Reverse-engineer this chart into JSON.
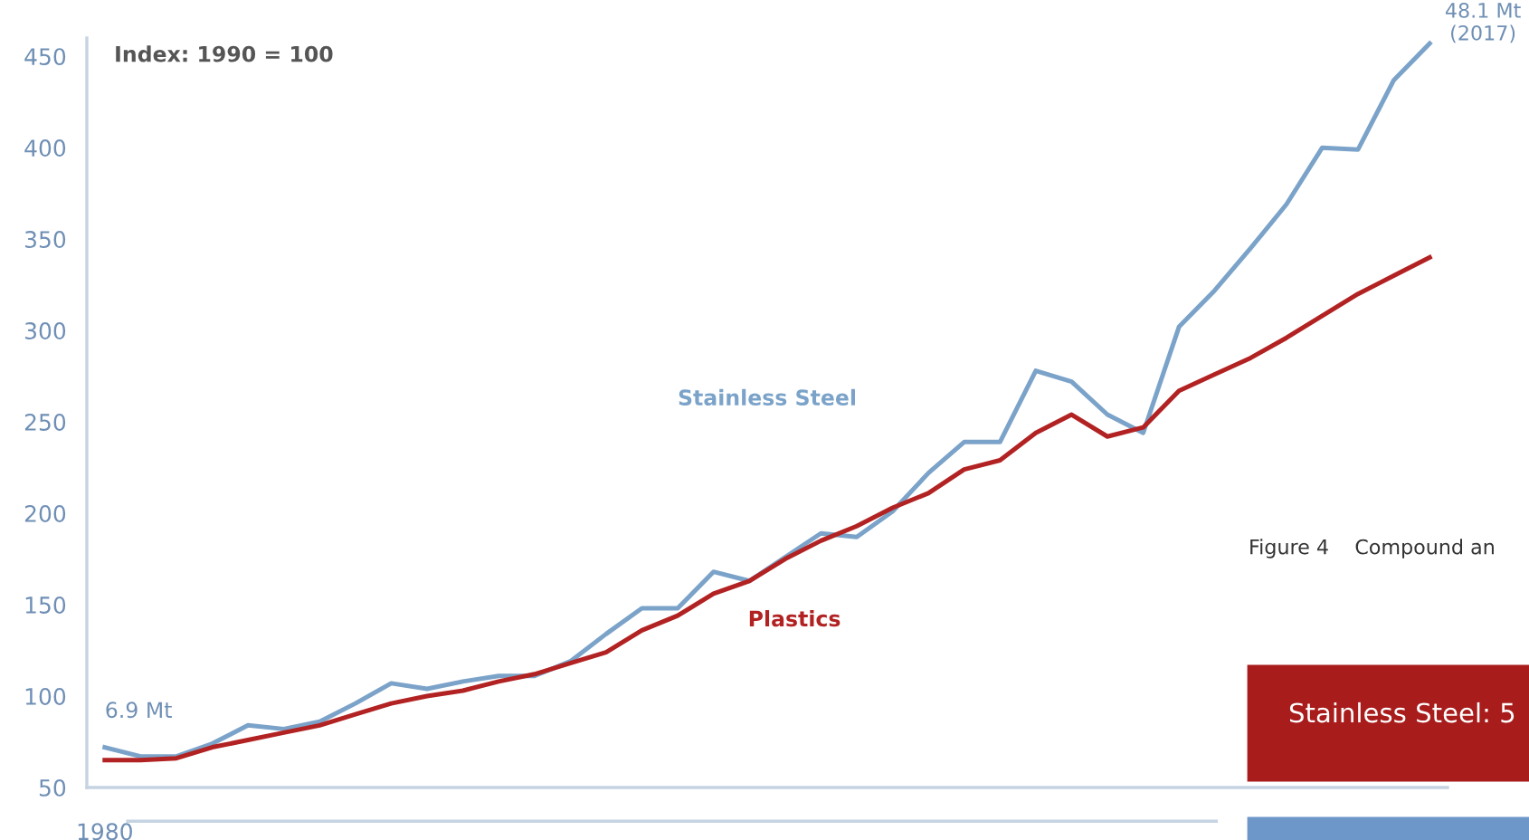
{
  "chart_data": {
    "type": "line",
    "categories": [
      "1980",
      null,
      null,
      null,
      null,
      null,
      null,
      null,
      null,
      null,
      null,
      null,
      null,
      null,
      null,
      null,
      null,
      null,
      null,
      null,
      null,
      null,
      null,
      null,
      null,
      null,
      null,
      null,
      null,
      null,
      null,
      null,
      null,
      null,
      null,
      null,
      null,
      null
    ],
    "series": [
      {
        "name": "Stainless Steel",
        "color": "#7ba3c9",
        "values": [
          72,
          67,
          67,
          74,
          84,
          82,
          86,
          96,
          107,
          104,
          108,
          111,
          111,
          119,
          134,
          148,
          148,
          168,
          163,
          176,
          189,
          187,
          201,
          222,
          239,
          239,
          278,
          272,
          254,
          244,
          302,
          322,
          345,
          369,
          400,
          399,
          437,
          457
        ]
      },
      {
        "name": "Plastics",
        "color": "#b22222",
        "values": [
          65,
          65,
          66,
          72,
          76,
          80,
          84,
          90,
          96,
          100,
          103,
          108,
          112,
          118,
          124,
          136,
          144,
          156,
          163,
          175,
          185,
          193,
          203,
          211,
          224,
          229,
          244,
          254,
          242,
          247,
          267,
          276,
          285,
          296,
          308,
          320,
          330,
          340
        ]
      }
    ],
    "ylim": [
      50,
      460
    ],
    "yticks": [
      50,
      100,
      150,
      200,
      250,
      300,
      350,
      400,
      450
    ],
    "grid": false,
    "legend": false,
    "line_style": "solid",
    "marker": "none",
    "annotations": [
      "Index: 1990 = 100",
      {
        "text": "6.9 Mt",
        "x": "1980",
        "y": 72
      },
      "48.1 Mt\n(2017)",
      "Figure 4    Compound an",
      "Stainless Steel: 5"
    ]
  }
}
